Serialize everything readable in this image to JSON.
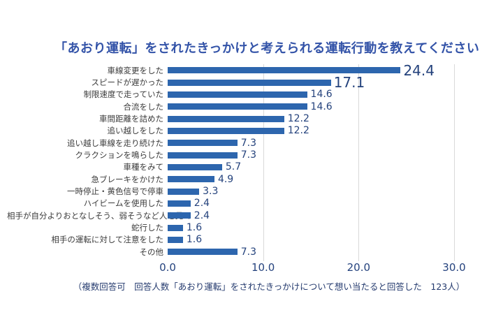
{
  "title": "「あおり運転」をされたきっかけと考えられる運転行動を教えてください",
  "footer_note": "（複数回答可　回答人数「あおり運転」をされたきっかけについて想い当たると回答した　123人）",
  "colors": {
    "title_text": "#3353a8",
    "bar": "#2d66ae",
    "value_text": "#24427c",
    "tick_text": "#25437e",
    "category_text": "#3b3b3b",
    "footer_text": "#243a6e",
    "gridline": "#d9d9d9",
    "background": "#ffffff"
  },
  "chart_data": {
    "type": "bar",
    "orientation": "horizontal",
    "title": "「あおり運転」をされたきっかけと考えられる運転行動を教えてください",
    "categories": [
      "車線変更をした",
      "スピードが遅かった",
      "制限速度で走っていた",
      "合流をした",
      "車間距離を詰めた",
      "追い越しをした",
      "追い越し車線を走り続けた",
      "クラクションを鳴らした",
      "車種をみて",
      "急ブレーキをかけた",
      "一時停止・黄色信号で停車",
      "ハイビームを使用した",
      "相手が自分よりおとなしそう、弱そうなど人を見て",
      "蛇行した",
      "相手の運転に対して注意をした",
      "その他"
    ],
    "values": [
      24.4,
      17.1,
      14.6,
      14.6,
      12.2,
      12.2,
      7.3,
      7.3,
      5.7,
      4.9,
      3.3,
      2.4,
      2.4,
      1.6,
      1.6,
      7.3
    ],
    "value_labels": [
      "24.4",
      "17.1",
      "14.6",
      "14.6",
      "12.2",
      "12.2",
      "7.3",
      "7.3",
      "5.7",
      "4.9",
      "3.3",
      "2.4",
      "2.4",
      "1.6",
      "1.6",
      "7.3"
    ],
    "x_ticks": [
      "0.0",
      "10.0",
      "20.0",
      "30.0"
    ],
    "xlim": [
      0,
      30
    ],
    "xlabel": "",
    "ylabel": "",
    "grid": true,
    "gridline_values": [
      10,
      20,
      30
    ],
    "legend": false,
    "emphasized_value_indices": [
      0,
      1
    ]
  }
}
